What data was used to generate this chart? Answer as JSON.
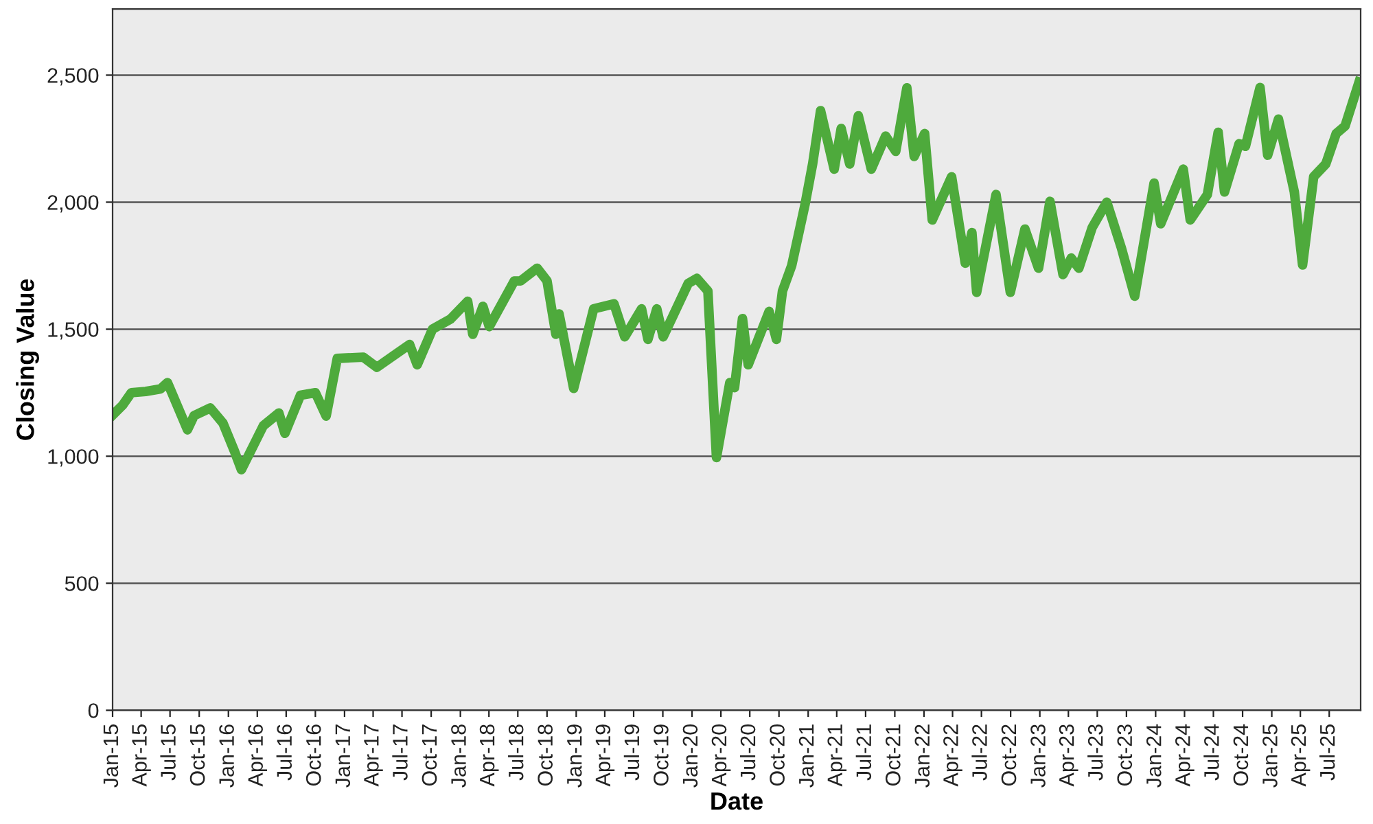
{
  "chart_data": {
    "type": "line",
    "xlabel": "Date",
    "ylabel": "Closing Value",
    "x": [
      "2015-01-02",
      "2015-02-01",
      "2015-03-01",
      "2015-04-15",
      "2015-06-01",
      "2015-06-23",
      "2015-07-10",
      "2015-08-25",
      "2015-09-15",
      "2015-11-05",
      "2015-12-15",
      "2016-01-20",
      "2016-02-11",
      "2016-04-20",
      "2016-06-08",
      "2016-06-27",
      "2016-08-15",
      "2016-10-01",
      "2016-11-04",
      "2016-12-09",
      "2017-03-01",
      "2017-04-13",
      "2017-07-25",
      "2017-08-18",
      "2017-10-05",
      "2017-12-01",
      "2018-01-24",
      "2018-02-09",
      "2018-03-13",
      "2018-04-02",
      "2018-06-20",
      "2018-07-10",
      "2018-08-31",
      "2018-10-01",
      "2018-10-29",
      "2018-11-08",
      "2018-12-24",
      "2019-02-25",
      "2019-04-30",
      "2019-06-03",
      "2019-07-26",
      "2019-08-15",
      "2019-09-12",
      "2019-10-02",
      "2019-12-20",
      "2020-01-16",
      "2020-02-20",
      "2020-03-18",
      "2020-04-29",
      "2020-05-14",
      "2020-06-08",
      "2020-06-26",
      "2020-08-31",
      "2020-09-23",
      "2020-10-12",
      "2020-11-10",
      "2020-12-22",
      "2021-01-15",
      "2021-02-09",
      "2021-03-24",
      "2021-04-15",
      "2021-05-12",
      "2021-06-08",
      "2021-07-19",
      "2021-09-02",
      "2021-10-04",
      "2021-11-08",
      "2021-12-01",
      "2022-01-03",
      "2022-01-27",
      "2022-03-29",
      "2022-05-11",
      "2022-06-01",
      "2022-06-16",
      "2022-08-16",
      "2022-09-30",
      "2022-11-15",
      "2022-12-28",
      "2023-02-02",
      "2023-03-15",
      "2023-04-10",
      "2023-05-04",
      "2023-06-15",
      "2023-07-31",
      "2023-09-15",
      "2023-10-27",
      "2023-12-27",
      "2024-01-17",
      "2024-03-28",
      "2024-04-19",
      "2024-06-12",
      "2024-07-16",
      "2024-08-05",
      "2024-09-20",
      "2024-10-10",
      "2024-11-25",
      "2024-12-19",
      "2025-01-22",
      "2025-03-13",
      "2025-04-08",
      "2025-05-13",
      "2025-06-20",
      "2025-07-23",
      "2025-08-20",
      "2025-10-03"
    ],
    "series": [
      {
        "color": "#4eaa3c",
        "values": [
          1163,
          1200,
          1250,
          1255,
          1265,
          1290,
          1240,
          1104,
          1160,
          1190,
          1130,
          1020,
          947,
          1120,
          1170,
          1090,
          1240,
          1250,
          1158,
          1385,
          1390,
          1350,
          1440,
          1360,
          1500,
          1540,
          1610,
          1480,
          1590,
          1510,
          1690,
          1690,
          1740,
          1690,
          1480,
          1560,
          1267,
          1580,
          1600,
          1470,
          1580,
          1460,
          1580,
          1470,
          1680,
          1700,
          1650,
          995,
          1290,
          1270,
          1542,
          1360,
          1570,
          1460,
          1650,
          1750,
          1990,
          2150,
          2360,
          2130,
          2290,
          2150,
          2340,
          2130,
          2260,
          2200,
          2450,
          2180,
          2270,
          1930,
          2100,
          1760,
          1880,
          1645,
          2030,
          1645,
          1894,
          1740,
          2003,
          1715,
          1780,
          1740,
          1900,
          2000,
          1820,
          1630,
          2075,
          1915,
          2130,
          1930,
          2030,
          2275,
          2040,
          2230,
          2220,
          2451,
          2185,
          2327,
          2040,
          1753,
          2100,
          2150,
          2270,
          2300,
          2473
        ]
      }
    ],
    "xlim": [
      "2015-01-01",
      "2025-10-08"
    ],
    "xticks": [
      {
        "value": "2015-01-01",
        "label": "Jan-15"
      },
      {
        "value": "2015-04-01",
        "label": "Apr-15"
      },
      {
        "value": "2015-07-01",
        "label": "Jul-15"
      },
      {
        "value": "2015-10-01",
        "label": "Oct-15"
      },
      {
        "value": "2016-01-01",
        "label": "Jan-16"
      },
      {
        "value": "2016-04-01",
        "label": "Apr-16"
      },
      {
        "value": "2016-07-01",
        "label": "Jul-16"
      },
      {
        "value": "2016-10-01",
        "label": "Oct-16"
      },
      {
        "value": "2017-01-01",
        "label": "Jan-17"
      },
      {
        "value": "2017-04-01",
        "label": "Apr-17"
      },
      {
        "value": "2017-07-01",
        "label": "Jul-17"
      },
      {
        "value": "2017-10-01",
        "label": "Oct-17"
      },
      {
        "value": "2018-01-01",
        "label": "Jan-18"
      },
      {
        "value": "2018-04-01",
        "label": "Apr-18"
      },
      {
        "value": "2018-07-01",
        "label": "Jul-18"
      },
      {
        "value": "2018-10-01",
        "label": "Oct-18"
      },
      {
        "value": "2019-01-01",
        "label": "Jan-19"
      },
      {
        "value": "2019-04-01",
        "label": "Apr-19"
      },
      {
        "value": "2019-07-01",
        "label": "Jul-19"
      },
      {
        "value": "2019-10-01",
        "label": "Oct-19"
      },
      {
        "value": "2020-01-01",
        "label": "Jan-20"
      },
      {
        "value": "2020-04-01",
        "label": "Apr-20"
      },
      {
        "value": "2020-07-01",
        "label": "Jul-20"
      },
      {
        "value": "2020-10-01",
        "label": "Oct-20"
      },
      {
        "value": "2021-01-01",
        "label": "Jan-21"
      },
      {
        "value": "2021-04-01",
        "label": "Apr-21"
      },
      {
        "value": "2021-07-01",
        "label": "Jul-21"
      },
      {
        "value": "2021-10-01",
        "label": "Oct-21"
      },
      {
        "value": "2022-01-01",
        "label": "Jan-22"
      },
      {
        "value": "2022-04-01",
        "label": "Apr-22"
      },
      {
        "value": "2022-07-01",
        "label": "Jul-22"
      },
      {
        "value": "2022-10-01",
        "label": "Oct-22"
      },
      {
        "value": "2023-01-01",
        "label": "Jan-23"
      },
      {
        "value": "2023-04-01",
        "label": "Apr-23"
      },
      {
        "value": "2023-07-01",
        "label": "Jul-23"
      },
      {
        "value": "2023-10-01",
        "label": "Oct-23"
      },
      {
        "value": "2024-01-01",
        "label": "Jan-24"
      },
      {
        "value": "2024-04-01",
        "label": "Apr-24"
      },
      {
        "value": "2024-07-01",
        "label": "Jul-24"
      },
      {
        "value": "2024-10-01",
        "label": "Oct-24"
      },
      {
        "value": "2025-01-01",
        "label": "Jan-25"
      },
      {
        "value": "2025-04-01",
        "label": "Apr-25"
      },
      {
        "value": "2025-07-01",
        "label": "Jul-25"
      }
    ],
    "ylim": [
      0,
      2760
    ],
    "yticks": [
      0,
      500,
      {
        "value": 1000,
        "label": "1,000"
      },
      {
        "value": 1500,
        "label": "1,500"
      },
      {
        "value": 2000,
        "label": "2,000"
      },
      {
        "value": 2500,
        "label": "2,500"
      }
    ],
    "grid": "y",
    "marker": "none",
    "line_style": "solid"
  }
}
